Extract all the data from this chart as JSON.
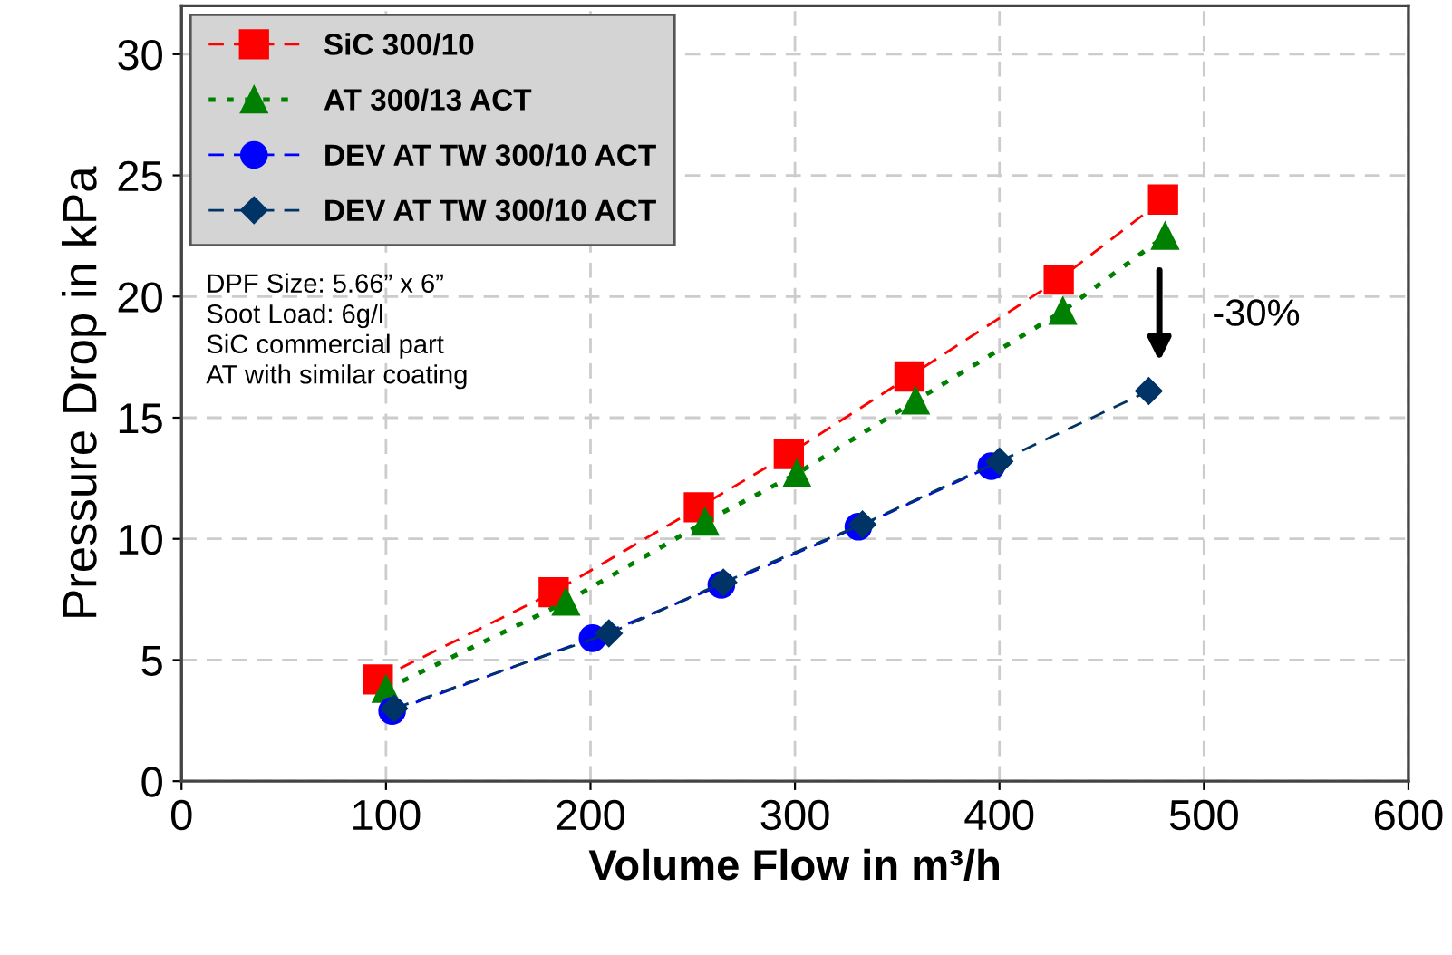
{
  "chart_data": {
    "type": "line",
    "xlabel": "Volume Flow in m³/h",
    "ylabel": "Pressure Drop in kPa",
    "xlim": [
      0,
      600
    ],
    "xticks": [
      0,
      100,
      200,
      300,
      400,
      500,
      600
    ],
    "ylim": [
      0,
      32
    ],
    "yticks": [
      0,
      5,
      10,
      15,
      20,
      25,
      30
    ],
    "grid": true,
    "legend": "top left",
    "series": [
      {
        "name": "SiC 300/10",
        "color": "#ff0000",
        "marker": "square",
        "line_style": "dashed",
        "x": [
          96,
          182,
          253,
          297,
          356,
          429,
          480
        ],
        "values": [
          4.2,
          7.8,
          11.3,
          13.5,
          16.7,
          20.7,
          24.0
        ]
      },
      {
        "name": "AT 300/13 ACT",
        "color": "#008000",
        "marker": "triangle",
        "line_style": "dotted",
        "x": [
          100,
          188,
          256,
          301,
          359,
          431,
          481
        ],
        "values": [
          3.8,
          7.4,
          10.7,
          12.7,
          15.7,
          19.4,
          22.5
        ]
      },
      {
        "name": "DEV AT TW 300/10 ACT",
        "color": "#0000ff",
        "marker": "circle",
        "line_style": "dashed",
        "x": [
          103,
          201,
          264,
          331,
          396
        ],
        "values": [
          2.9,
          5.9,
          8.1,
          10.5,
          13.0
        ]
      },
      {
        "name": "DEV AT TW 300/10 ACT",
        "color": "#003366",
        "marker": "diamond",
        "line_style": "dashed",
        "x": [
          104,
          209,
          265,
          333,
          400,
          473
        ],
        "values": [
          3.0,
          6.1,
          8.2,
          10.6,
          13.2,
          16.1
        ]
      }
    ],
    "annotations": [
      "DPF Size: 5.66” x 6”\nSoot Load: 6g/l\nSiC commercial part\nAT with similar coating",
      "-30%"
    ]
  }
}
